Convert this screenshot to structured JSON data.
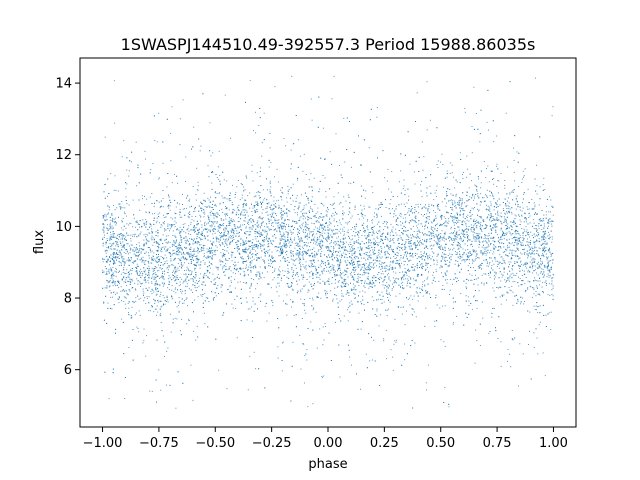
{
  "chart_data": {
    "type": "scatter",
    "title": "1SWASPJ144510.49-392557.3 Period 15988.86035s",
    "xlabel": "phase",
    "ylabel": "flux",
    "xlim": [
      -1.1,
      1.1
    ],
    "ylim": [
      4.4,
      14.7
    ],
    "x_ticks": [
      -1.0,
      -0.75,
      -0.5,
      -0.25,
      0.0,
      0.25,
      0.5,
      0.75,
      1.0
    ],
    "x_tick_labels": [
      "−1.00",
      "−0.75",
      "−0.50",
      "−0.25",
      "0.00",
      "0.25",
      "0.50",
      "0.75",
      "1.00"
    ],
    "y_ticks": [
      6,
      8,
      10,
      12,
      14
    ],
    "y_tick_labels": [
      "6",
      "8",
      "10",
      "12",
      "14"
    ],
    "grid": false,
    "marker_color": "#1f77b4",
    "series": [
      {
        "name": "",
        "x_range": [
          -1.0,
          1.0
        ],
        "y_range": [
          4.9,
          14.3
        ],
        "profile": [
          {
            "phase": -1.0,
            "median": 9.4
          },
          {
            "phase": -0.8,
            "median": 9.0
          },
          {
            "phase": -0.5,
            "median": 9.6
          },
          {
            "phase": -0.25,
            "median": 9.7
          },
          {
            "phase": 0.0,
            "median": 9.3
          },
          {
            "phase": 0.1,
            "median": 9.0
          },
          {
            "phase": 0.5,
            "median": 9.6
          },
          {
            "phase": 0.75,
            "median": 9.7
          },
          {
            "phase": 1.0,
            "median": 9.3
          }
        ]
      }
    ]
  }
}
